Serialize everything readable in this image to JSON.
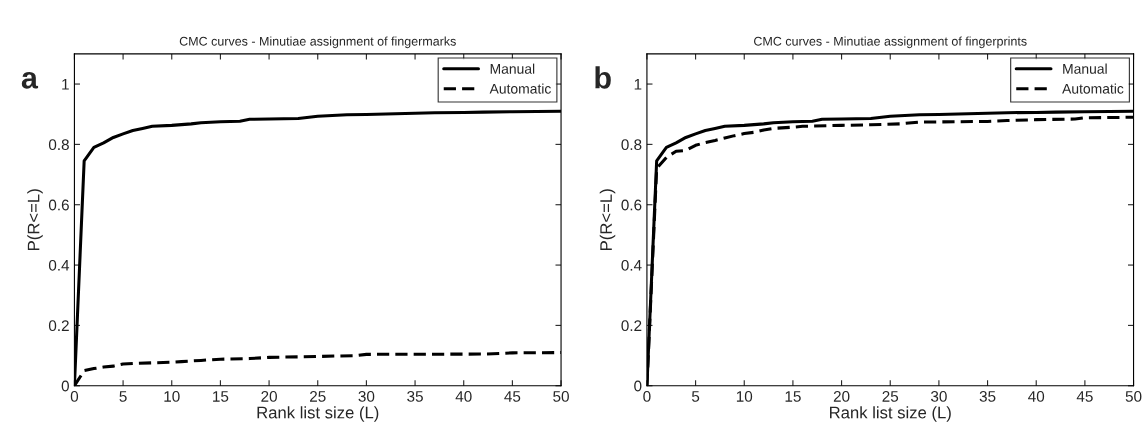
{
  "chart_data": [
    {
      "type": "line",
      "title": "CMC curves - Minutiae assignment of fingermarks",
      "xlabel": "Rank list size (L)",
      "ylabel": "P(R<=L)",
      "annotations": [
        "a"
      ],
      "xlim": [
        0,
        50
      ],
      "ylim": [
        0,
        1.1
      ],
      "xticks": [
        0,
        5,
        10,
        15,
        20,
        25,
        30,
        35,
        40,
        45,
        50
      ],
      "yticks": [
        0,
        0.2,
        0.4,
        0.6,
        0.8,
        1
      ],
      "legend": "top right",
      "grid": false,
      "series": [
        {
          "name": "Manual",
          "color": "#000000",
          "line_style": "solid",
          "x": [
            0,
            1,
            2,
            3,
            4,
            5,
            6,
            7,
            8,
            10,
            12,
            13,
            15,
            17,
            18,
            20,
            23,
            25,
            28,
            30,
            32,
            35,
            37,
            40,
            42,
            45,
            50
          ],
          "values": [
            0,
            0.745,
            0.79,
            0.805,
            0.823,
            0.835,
            0.846,
            0.853,
            0.86,
            0.863,
            0.868,
            0.872,
            0.875,
            0.877,
            0.883,
            0.884,
            0.886,
            0.893,
            0.898,
            0.899,
            0.901,
            0.903,
            0.905,
            0.906,
            0.907,
            0.908,
            0.91
          ]
        },
        {
          "name": "Automatic",
          "color": "#000000",
          "line_style": "dashed",
          "x": [
            0,
            1,
            2,
            3,
            4,
            5,
            6,
            10,
            11,
            13,
            15,
            18,
            20,
            25,
            29,
            30,
            42,
            45,
            50
          ],
          "values": [
            0,
            0.05,
            0.057,
            0.062,
            0.065,
            0.072,
            0.074,
            0.078,
            0.08,
            0.084,
            0.088,
            0.09,
            0.094,
            0.097,
            0.1,
            0.104,
            0.105,
            0.109,
            0.11
          ]
        }
      ]
    },
    {
      "type": "line",
      "title": "CMC curves - Minutiae assignment of fingerprints",
      "xlabel": "Rank list size (L)",
      "ylabel": "P(R<=L)",
      "annotations": [
        "b"
      ],
      "xlim": [
        0,
        50
      ],
      "ylim": [
        0,
        1.1
      ],
      "xticks": [
        0,
        5,
        10,
        15,
        20,
        25,
        30,
        35,
        40,
        45,
        50
      ],
      "yticks": [
        0,
        0.2,
        0.4,
        0.6,
        0.8,
        1
      ],
      "legend": "top right",
      "grid": false,
      "series": [
        {
          "name": "Manual",
          "color": "#000000",
          "line_style": "solid",
          "x": [
            0,
            1,
            2,
            3,
            4,
            5,
            6,
            7,
            8,
            10,
            12,
            13,
            15,
            17,
            18,
            20,
            23,
            25,
            28,
            30,
            32,
            35,
            37,
            40,
            42,
            45,
            50
          ],
          "values": [
            0,
            0.745,
            0.79,
            0.805,
            0.823,
            0.835,
            0.846,
            0.853,
            0.86,
            0.863,
            0.868,
            0.872,
            0.875,
            0.877,
            0.883,
            0.884,
            0.886,
            0.893,
            0.898,
            0.899,
            0.901,
            0.903,
            0.905,
            0.906,
            0.907,
            0.908,
            0.91
          ]
        },
        {
          "name": "Automatic",
          "color": "#000000",
          "line_style": "dashed",
          "x": [
            0,
            1,
            2,
            3,
            4,
            5,
            6,
            7,
            8,
            9,
            10,
            11,
            12,
            13,
            15,
            16,
            20,
            23,
            26,
            28,
            35,
            37,
            40,
            44,
            45,
            50
          ],
          "values": [
            0,
            0.72,
            0.757,
            0.777,
            0.78,
            0.797,
            0.806,
            0.813,
            0.821,
            0.829,
            0.836,
            0.84,
            0.848,
            0.853,
            0.857,
            0.86,
            0.863,
            0.865,
            0.868,
            0.874,
            0.876,
            0.879,
            0.882,
            0.884,
            0.888,
            0.89
          ]
        }
      ]
    }
  ]
}
